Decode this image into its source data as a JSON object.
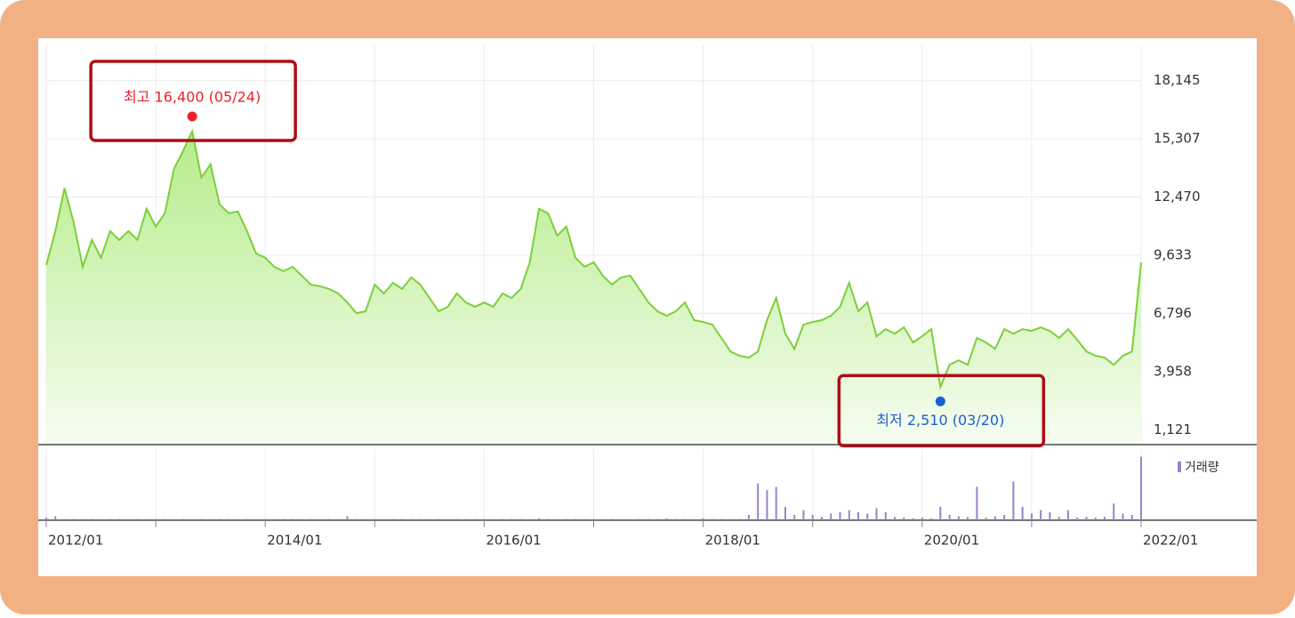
{
  "chart_data": [
    {
      "type": "area",
      "color": "#7ccf3a",
      "grid": true,
      "categories": [
        "2012/01",
        null,
        null,
        null,
        null,
        null,
        null,
        null,
        null,
        null,
        null,
        null,
        null,
        null,
        null,
        null,
        null,
        null,
        null,
        null,
        null,
        null,
        null,
        null,
        "2014/01",
        null,
        null,
        null,
        null,
        null,
        null,
        null,
        null,
        null,
        null,
        null,
        null,
        null,
        null,
        null,
        null,
        null,
        null,
        null,
        null,
        null,
        null,
        null,
        "2016/01",
        null,
        null,
        null,
        null,
        null,
        null,
        null,
        null,
        null,
        null,
        null,
        null,
        null,
        null,
        null,
        null,
        null,
        null,
        null,
        null,
        null,
        null,
        null,
        "2018/01",
        null,
        null,
        null,
        null,
        null,
        null,
        null,
        null,
        null,
        null,
        null,
        null,
        null,
        null,
        null,
        null,
        null,
        null,
        null,
        null,
        null,
        null,
        null,
        "2020/01",
        null,
        null,
        null,
        null,
        null,
        null,
        null,
        null,
        null,
        null,
        null,
        null,
        null,
        null,
        null,
        null,
        null,
        null,
        null,
        null,
        null,
        null,
        null,
        "2022/01"
      ],
      "values": [
        9160,
        10810,
        12900,
        11240,
        9070,
        10380,
        9510,
        10810,
        10380,
        10810,
        10380,
        11900,
        11030,
        11680,
        13850,
        14720,
        15680,
        13420,
        14070,
        12110,
        11680,
        11770,
        10810,
        9720,
        9510,
        9070,
        8860,
        9070,
        8640,
        8200,
        8120,
        7990,
        7770,
        7330,
        6810,
        6900,
        8200,
        7770,
        8290,
        7990,
        8550,
        8200,
        7550,
        6900,
        7120,
        7770,
        7330,
        7120,
        7330,
        7120,
        7770,
        7550,
        7990,
        9290,
        11900,
        11680,
        10590,
        11030,
        9510,
        9070,
        9290,
        8640,
        8200,
        8550,
        8640,
        7990,
        7330,
        6900,
        6680,
        6900,
        7330,
        6470,
        6380,
        6250,
        5600,
        4940,
        4730,
        4640,
        4940,
        6470,
        7550,
        5810,
        5070,
        6250,
        6380,
        6470,
        6680,
        7120,
        8290,
        6900,
        7330,
        5680,
        6030,
        5810,
        6120,
        5380,
        5680,
        6030,
        3210,
        4290,
        4510,
        4290,
        5600,
        5380,
        5070,
        6030,
        5810,
        6030,
        5940,
        6120,
        5940,
        5600,
        6030,
        5510,
        4940,
        4730,
        4640,
        4290,
        4730,
        4940,
        9290
      ],
      "ylim": [
        400,
        19000
      ],
      "yticks": [
        {
          "value": 1121,
          "label": "1,121"
        },
        {
          "value": 3958,
          "label": "3,958"
        },
        {
          "value": 6796,
          "label": "6,796"
        },
        {
          "value": 9633,
          "label": "9,633"
        },
        {
          "value": 12470,
          "label": "12,470"
        },
        {
          "value": 15307,
          "label": "15,307"
        },
        {
          "value": 18145,
          "label": "18,145"
        }
      ],
      "annotations": [
        {
          "text": "최고 16,400 (05/24)",
          "value": 16400,
          "color": "#e8222a"
        },
        {
          "text": "최저 2,510 (03/20)",
          "value": 2510,
          "color": "#1a5fd6"
        }
      ]
    },
    {
      "type": "bar",
      "ylim": [
        0,
        100
      ],
      "series": [
        {
          "name": "거래량",
          "color": "#9b82c9",
          "values": [
            4,
            6,
            2,
            2,
            2,
            2,
            2,
            2,
            2,
            2,
            2,
            2,
            2,
            2,
            2,
            2,
            2,
            2,
            2,
            2,
            2,
            2,
            2,
            2,
            2,
            2,
            2,
            2,
            2,
            2,
            2,
            2,
            2,
            6,
            2,
            2,
            2,
            2,
            2,
            2,
            2,
            2,
            2,
            2,
            2,
            2,
            2,
            2,
            2,
            2,
            2,
            2,
            2,
            2,
            3,
            2,
            2,
            2,
            2,
            2,
            2,
            2,
            2,
            2,
            2,
            2,
            2,
            2,
            3,
            2,
            2,
            2,
            3,
            2,
            2,
            2,
            2,
            8,
            55,
            45,
            50,
            20,
            8,
            15,
            8,
            5,
            10,
            12,
            15,
            12,
            10,
            18,
            12,
            5,
            4,
            3,
            4,
            3,
            20,
            8,
            6,
            5,
            50,
            4,
            6,
            8,
            58,
            20,
            10,
            15,
            12,
            5,
            15,
            4,
            5,
            4,
            5,
            25,
            10,
            8,
            95
          ]
        }
      ]
    }
  ]
}
